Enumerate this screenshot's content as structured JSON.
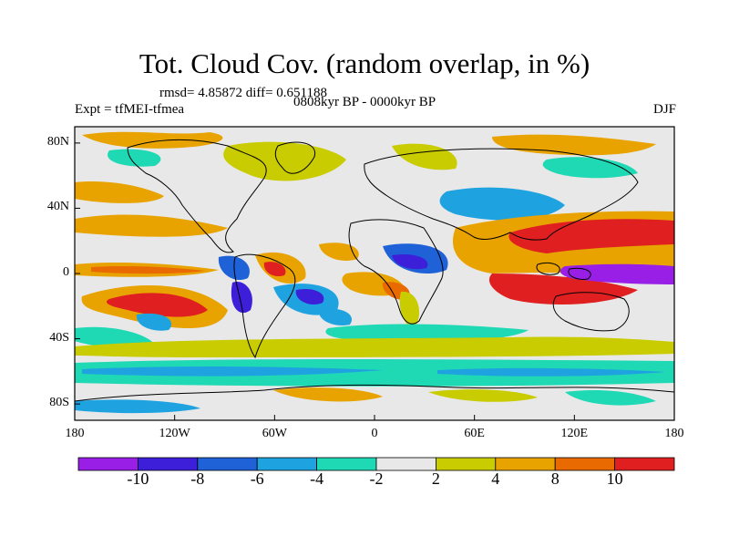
{
  "title": "Tot. Cloud Cov. (random overlap, in %)",
  "stats": "rmsd= 4.85872 diff= 0.651188",
  "expt": "Expt = tfMEI-tfmea",
  "period": "0808kyr BP - 0000kyr BP",
  "season": "DJF",
  "lat_axis": {
    "labels": [
      {
        "text": "80N",
        "lat": 80
      },
      {
        "text": "40N",
        "lat": 40
      },
      {
        "text": "0",
        "lat": 0
      },
      {
        "text": "40S",
        "lat": -40
      },
      {
        "text": "80S",
        "lat": -80
      }
    ],
    "range": [
      -90,
      90
    ]
  },
  "lon_axis": {
    "labels": [
      {
        "text": "180",
        "lon": -180
      },
      {
        "text": "120W",
        "lon": -120
      },
      {
        "text": "60W",
        "lon": -60
      },
      {
        "text": "0",
        "lon": 0
      },
      {
        "text": "60E",
        "lon": 60
      },
      {
        "text": "120E",
        "lon": 120
      },
      {
        "text": "180",
        "lon": 180
      }
    ],
    "range": [
      -180,
      180
    ]
  },
  "colorbar": {
    "labels": [
      "-10",
      "-8",
      "-6",
      "-4",
      "-2",
      "2",
      "4",
      "8",
      "10"
    ],
    "colors": [
      "#9a1fe6",
      "#3d1fd9",
      "#1f62d8",
      "#1fa3e0",
      "#1fd8b4",
      "#e8e8e8",
      "#c8cc00",
      "#e8a300",
      "#e86a00",
      "#e02020"
    ]
  }
}
